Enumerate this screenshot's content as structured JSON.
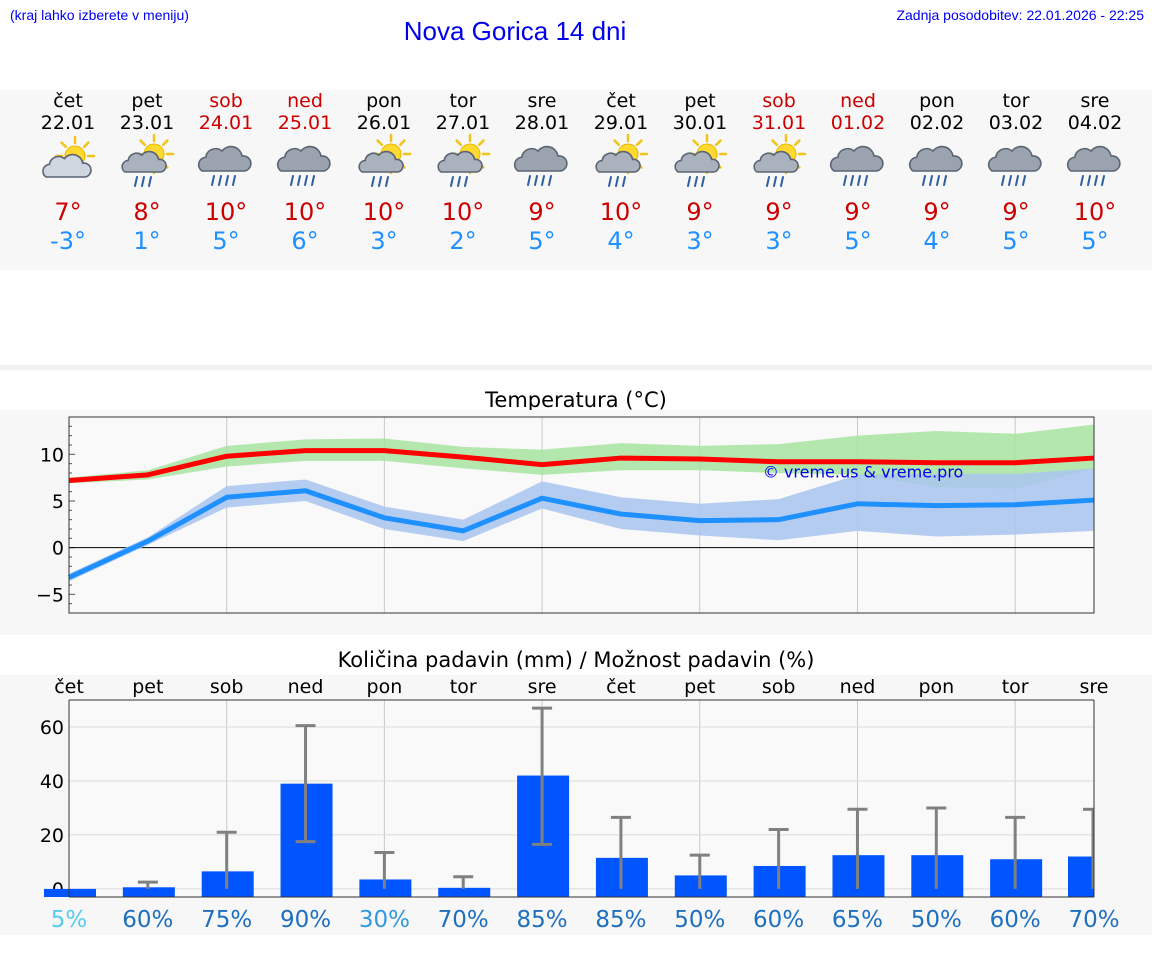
{
  "header": {
    "menu_hint": "(kraj lahko izberete v meniju)",
    "title": "Nova Gorica 14 dni",
    "last_update": "Zadnja posodobitev: 22.01.2026 - 22:25"
  },
  "forecast": {
    "days": [
      {
        "day": "čet",
        "date": "22.01",
        "weekend": false,
        "icon": "sun-cloud-icon",
        "max": "7°",
        "min": "-3°"
      },
      {
        "day": "pet",
        "date": "23.01",
        "weekend": false,
        "icon": "sun-cloud-rain-icon",
        "max": "8°",
        "min": "1°"
      },
      {
        "day": "sob",
        "date": "24.01",
        "weekend": true,
        "icon": "cloud-rain-icon",
        "max": "10°",
        "min": "5°"
      },
      {
        "day": "ned",
        "date": "25.01",
        "weekend": true,
        "icon": "cloud-rain-icon",
        "max": "10°",
        "min": "6°"
      },
      {
        "day": "pon",
        "date": "26.01",
        "weekend": false,
        "icon": "sun-cloud-rain-icon",
        "max": "10°",
        "min": "3°"
      },
      {
        "day": "tor",
        "date": "27.01",
        "weekend": false,
        "icon": "sun-cloud-rain-icon",
        "max": "10°",
        "min": "2°"
      },
      {
        "day": "sre",
        "date": "28.01",
        "weekend": false,
        "icon": "cloud-rain-icon",
        "max": "9°",
        "min": "5°"
      },
      {
        "day": "čet",
        "date": "29.01",
        "weekend": false,
        "icon": "sun-cloud-rain-icon",
        "max": "10°",
        "min": "4°"
      },
      {
        "day": "pet",
        "date": "30.01",
        "weekend": false,
        "icon": "sun-cloud-rain-icon",
        "max": "9°",
        "min": "3°"
      },
      {
        "day": "sob",
        "date": "31.01",
        "weekend": true,
        "icon": "sun-cloud-rain-icon",
        "max": "9°",
        "min": "3°"
      },
      {
        "day": "ned",
        "date": "01.02",
        "weekend": true,
        "icon": "cloud-rain-icon",
        "max": "9°",
        "min": "5°"
      },
      {
        "day": "pon",
        "date": "02.02",
        "weekend": false,
        "icon": "cloud-rain-icon",
        "max": "9°",
        "min": "4°"
      },
      {
        "day": "tor",
        "date": "03.02",
        "weekend": false,
        "icon": "cloud-rain-icon",
        "max": "9°",
        "min": "5°"
      },
      {
        "day": "sre",
        "date": "04.02",
        "weekend": false,
        "icon": "cloud-rain-icon",
        "max": "10°",
        "min": "5°"
      }
    ]
  },
  "colors": {
    "weekday": "#000000",
    "weekend": "#cc0000",
    "max_temp": "#cc0000",
    "min_temp": "#1e90ff",
    "max_line": "#ff0000",
    "max_band": "#a8e4a0",
    "min_line": "#1e90ff",
    "min_band": "#a9c4f0",
    "bar": "#0055ff",
    "error_bar": "#808080",
    "watermark": "#0000ee"
  },
  "chart_data": [
    {
      "type": "line",
      "title": "Temperatura (°C)",
      "watermark": "© vreme.us & vreme.pro",
      "x": [
        0,
        1,
        2,
        3,
        4,
        5,
        6,
        7,
        8,
        9,
        10,
        11,
        12,
        13
      ],
      "ylim": [
        -7,
        14
      ],
      "yticks": [
        -5,
        0,
        5,
        10
      ],
      "series": [
        {
          "name": "max",
          "values": [
            7.2,
            7.8,
            9.8,
            10.4,
            10.4,
            9.7,
            8.9,
            9.6,
            9.5,
            9.2,
            9.2,
            9.1,
            9.1,
            9.6
          ],
          "band_low": [
            6.9,
            7.3,
            8.7,
            9.3,
            9.3,
            8.5,
            7.8,
            8.3,
            8.3,
            8.0,
            7.8,
            6.5,
            6.3,
            8.5
          ],
          "band_high": [
            7.5,
            8.3,
            10.9,
            11.6,
            11.7,
            10.8,
            10.5,
            11.2,
            10.9,
            11.1,
            12.0,
            12.5,
            12.2,
            13.2
          ]
        },
        {
          "name": "min",
          "values": [
            -3.2,
            0.7,
            5.4,
            6.1,
            3.2,
            1.8,
            5.3,
            3.6,
            2.9,
            3.0,
            4.7,
            4.5,
            4.6,
            5.1
          ],
          "band_low": [
            -3.6,
            0.3,
            4.3,
            5.0,
            2.0,
            0.7,
            4.2,
            2.0,
            1.3,
            0.8,
            1.8,
            1.2,
            1.4,
            1.8
          ],
          "band_high": [
            -2.8,
            1.1,
            6.6,
            7.3,
            4.4,
            3.0,
            7.1,
            5.4,
            4.7,
            5.2,
            7.8,
            7.9,
            7.9,
            8.5
          ]
        }
      ]
    },
    {
      "type": "bar",
      "title": "Količina padavin (mm) / Možnost padavin (%)",
      "categories": [
        "čet",
        "pet",
        "sob",
        "ned",
        "pon",
        "tor",
        "sre",
        "čet",
        "pet",
        "sob",
        "ned",
        "pon",
        "tor",
        "sre"
      ],
      "values": [
        0,
        0.6,
        6.5,
        39,
        3.5,
        0.4,
        42,
        11.5,
        5,
        8.5,
        12.5,
        12.5,
        11,
        12
      ],
      "error_low": [
        0,
        0,
        0,
        17.5,
        0,
        0,
        16.5,
        0,
        0,
        0,
        0,
        0,
        0,
        0
      ],
      "error_high": [
        0,
        2.5,
        21,
        60.5,
        13.5,
        4.5,
        67,
        26.5,
        12.5,
        22,
        29.5,
        30,
        26.5,
        29.5
      ],
      "ylim": [
        -3,
        70
      ],
      "yticks": [
        0,
        20,
        40,
        60
      ],
      "probability": [
        "5%",
        "60%",
        "75%",
        "90%",
        "30%",
        "70%",
        "85%",
        "85%",
        "50%",
        "60%",
        "65%",
        "50%",
        "60%",
        "70%"
      ],
      "probability_colors": [
        "#55ccee",
        "#1f6fbf",
        "#1f6fbf",
        "#1f6fbf",
        "#3399dd",
        "#1f6fbf",
        "#1f6fbf",
        "#1f6fbf",
        "#1f6fbf",
        "#1f6fbf",
        "#1f6fbf",
        "#1f6fbf",
        "#1f6fbf",
        "#1f6fbf"
      ]
    }
  ]
}
